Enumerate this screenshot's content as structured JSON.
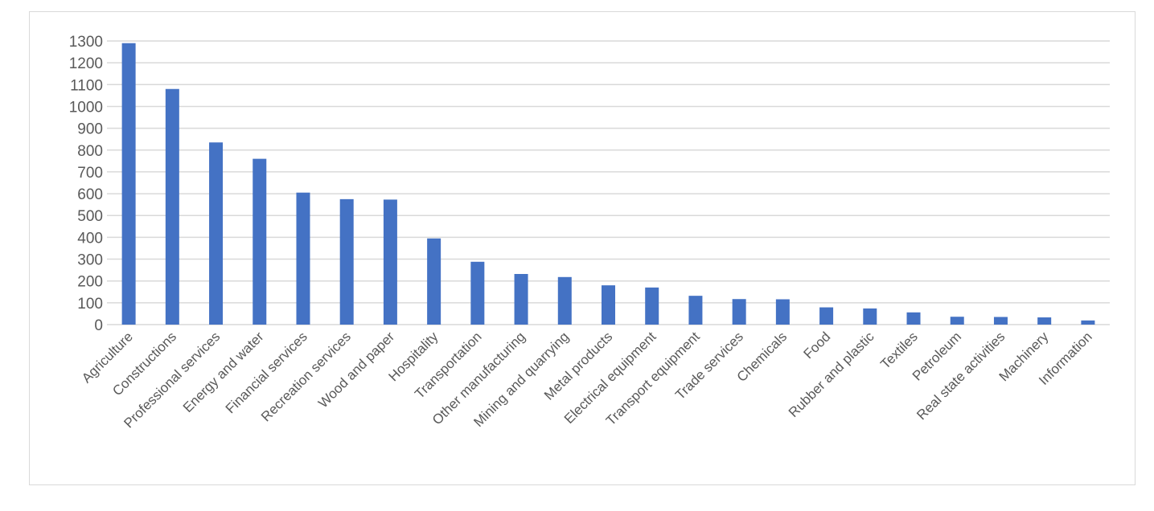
{
  "chart_data": {
    "type": "bar",
    "title": "",
    "xlabel": "",
    "ylabel": "",
    "ylim": [
      0,
      1300
    ],
    "yticks": [
      0,
      100,
      200,
      300,
      400,
      500,
      600,
      700,
      800,
      900,
      1000,
      1100,
      1200,
      1300
    ],
    "grid": true,
    "legend": "none",
    "bar_color": "#4472c4",
    "categories": [
      "Agriculture",
      "Constructions",
      "Professional services",
      "Energy and water",
      "Financial services",
      "Recreation services",
      "Wood and paper",
      "Hospitality",
      "Transportation",
      "Other manufacturing",
      "Mining and quarrying",
      "Metal products",
      "Electrical equipment",
      "Transport equipment",
      "Trade services",
      "Chemicals",
      "Food",
      "Rubber and plastic",
      "Textiles",
      "Petroleum",
      "Real state activities",
      "Machinery",
      "Information"
    ],
    "values": [
      1290,
      1080,
      835,
      760,
      605,
      575,
      573,
      395,
      288,
      232,
      218,
      180,
      170,
      132,
      117,
      116,
      79,
      74,
      56,
      36,
      35,
      33,
      19
    ]
  }
}
